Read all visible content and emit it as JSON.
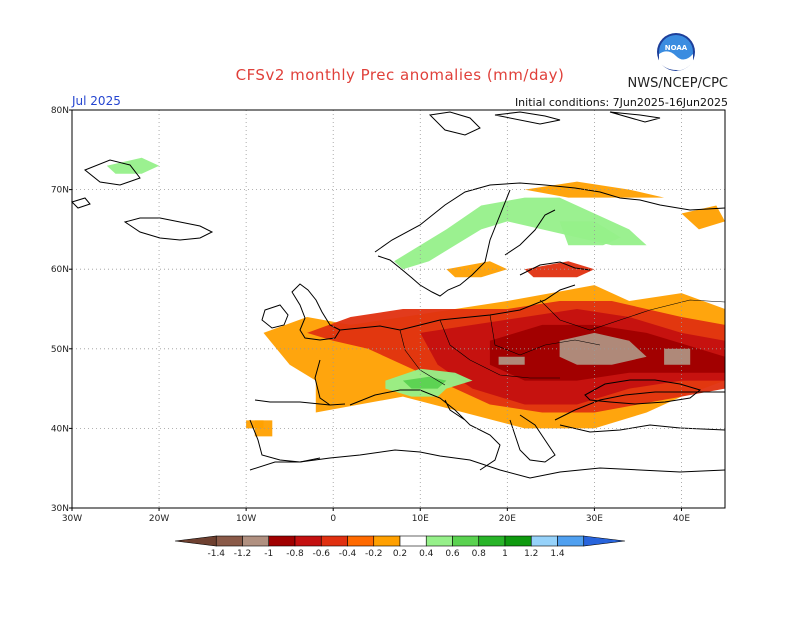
{
  "title": "CFSv2 monthly Prec anomalies (mm/day)",
  "org": "NWS/NCEP/CPC",
  "logo_text": "NOAA",
  "month": "Jul 2025",
  "initial_conditions": "Initial conditions: 7Jun2025-16Jun2025",
  "map": {
    "lon_range": [
      -30,
      45
    ],
    "lat_range": [
      30,
      80
    ],
    "lon_ticks": [
      "30W",
      "20W",
      "10W",
      "0",
      "10E",
      "20E",
      "30E",
      "40E"
    ],
    "lat_ticks": [
      "30N",
      "40N",
      "50N",
      "60N",
      "70N",
      "80N"
    ],
    "grid": "dotted"
  },
  "colorbar": {
    "labels": [
      "-1.4",
      "-1.2",
      "-1",
      "-0.8",
      "-0.6",
      "-0.4",
      "-0.2",
      "0.2",
      "0.4",
      "0.6",
      "0.8",
      "1",
      "1.2",
      "1.4"
    ],
    "colors": [
      "#6e4030",
      "#8a5a48",
      "#b09080",
      "#a00000",
      "#c41010",
      "#e03010",
      "#ff6a00",
      "#ffa000",
      "#ffffff",
      "#96f08a",
      "#5ad250",
      "#28b428",
      "#0f9a0f",
      "#96d2fa",
      "#50a0f0",
      "#2864dc"
    ]
  },
  "anomaly_regions": [
    {
      "name": "central-east-europe-dry",
      "color": "#c41010"
    },
    {
      "name": "west-europe-dry",
      "color": "#ffa000"
    },
    {
      "name": "scandinavia-wet",
      "color": "#96f08a"
    },
    {
      "name": "alps-wet",
      "color": "#5ad250"
    },
    {
      "name": "ukraine-strong-dry",
      "color": "#b09080"
    }
  ]
}
